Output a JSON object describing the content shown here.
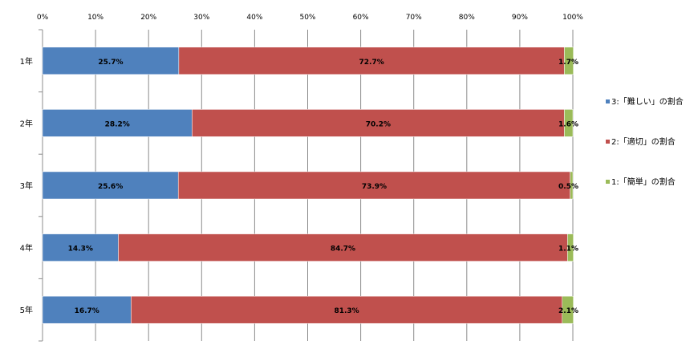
{
  "chart_data": {
    "type": "bar",
    "orientation": "horizontal",
    "stacked": "percent",
    "categories": [
      "1年",
      "2年",
      "3年",
      "4年",
      "5年"
    ],
    "series": [
      {
        "name": "3:「難しい」の割合",
        "color": "#4f81bd",
        "values": [
          25.7,
          28.2,
          25.6,
          14.3,
          16.7
        ],
        "labels": [
          "25.7%",
          "28.2%",
          "25.6%",
          "14.3%",
          "16.7%"
        ]
      },
      {
        "name": "2:「適切」の割合",
        "color": "#c0504d",
        "values": [
          72.7,
          70.2,
          73.9,
          84.7,
          81.3
        ],
        "labels": [
          "72.7%",
          "70.2%",
          "73.9%",
          "84.7%",
          "81.3%"
        ]
      },
      {
        "name": "1:「簡単」の割合",
        "color": "#9bbb59",
        "values": [
          1.7,
          1.6,
          0.5,
          1.1,
          2.1
        ],
        "labels": [
          "1.7%",
          "1.6%",
          "0.5%",
          "1.1%",
          "2.1%"
        ]
      }
    ],
    "x_ticks": [
      "0%",
      "10%",
      "20%",
      "30%",
      "40%",
      "50%",
      "60%",
      "70%",
      "80%",
      "90%",
      "100%"
    ],
    "xlim": [
      0,
      100
    ],
    "grid": true,
    "legend_position": "right"
  }
}
